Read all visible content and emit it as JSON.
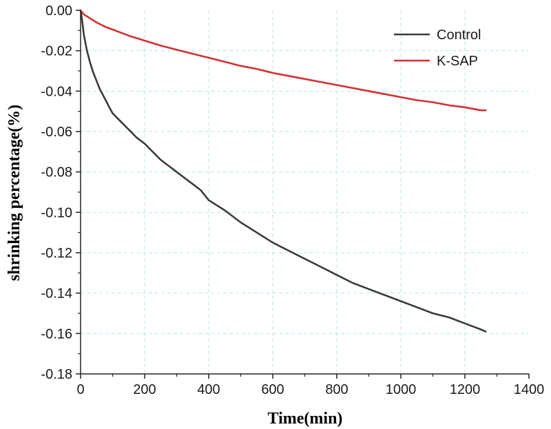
{
  "chart_data": {
    "type": "line",
    "title": "",
    "xlabel": "Time(min)",
    "ylabel": "shrinking percentage(%)",
    "xlim": [
      0,
      1400
    ],
    "ylim": [
      -0.18,
      0.0
    ],
    "xticks": [
      0,
      200,
      400,
      600,
      800,
      1000,
      1200,
      1400
    ],
    "xtick_labels": [
      "0",
      "200",
      "400",
      "600",
      "800",
      "1000",
      "1200",
      "1400"
    ],
    "yticks": [
      0.0,
      -0.02,
      -0.04,
      -0.06,
      -0.08,
      -0.1,
      -0.12,
      -0.14,
      -0.16,
      -0.18
    ],
    "ytick_labels": [
      "0.00",
      "-0.02",
      "-0.04",
      "-0.06",
      "-0.08",
      "-0.10",
      "-0.12",
      "-0.14",
      "-0.16",
      "-0.18"
    ],
    "grid": true,
    "legend_position": "top-right",
    "series": [
      {
        "name": "Control",
        "color": "#3a3a3a",
        "x": [
          0,
          5,
          10,
          20,
          30,
          40,
          50,
          60,
          70,
          80,
          90,
          100,
          125,
          150,
          175,
          200,
          225,
          250,
          275,
          300,
          325,
          350,
          375,
          400,
          450,
          500,
          550,
          600,
          650,
          700,
          750,
          800,
          850,
          900,
          950,
          1000,
          1050,
          1100,
          1150,
          1200,
          1250,
          1265
        ],
        "y": [
          0.0,
          -0.005,
          -0.012,
          -0.02,
          -0.026,
          -0.031,
          -0.035,
          -0.039,
          -0.042,
          -0.045,
          -0.048,
          -0.051,
          -0.055,
          -0.059,
          -0.063,
          -0.066,
          -0.07,
          -0.074,
          -0.077,
          -0.08,
          -0.083,
          -0.086,
          -0.089,
          -0.094,
          -0.099,
          -0.105,
          -0.11,
          -0.115,
          -0.119,
          -0.123,
          -0.127,
          -0.131,
          -0.135,
          -0.138,
          -0.141,
          -0.144,
          -0.147,
          -0.15,
          -0.152,
          -0.155,
          -0.158,
          -0.159
        ]
      },
      {
        "name": "K-SAP",
        "color": "#d22f2f",
        "x": [
          0,
          5,
          10,
          20,
          30,
          50,
          75,
          100,
          150,
          200,
          250,
          300,
          350,
          400,
          450,
          500,
          550,
          600,
          650,
          700,
          750,
          800,
          850,
          900,
          950,
          1000,
          1050,
          1100,
          1150,
          1200,
          1250,
          1265
        ],
        "y": [
          0.0,
          -0.001,
          -0.002,
          -0.003,
          -0.004,
          -0.006,
          -0.008,
          -0.0095,
          -0.0125,
          -0.015,
          -0.0175,
          -0.0195,
          -0.0215,
          -0.0235,
          -0.0255,
          -0.0275,
          -0.029,
          -0.031,
          -0.0325,
          -0.034,
          -0.0355,
          -0.037,
          -0.0385,
          -0.04,
          -0.0415,
          -0.043,
          -0.0445,
          -0.0455,
          -0.047,
          -0.048,
          -0.0495,
          -0.0495
        ]
      }
    ]
  }
}
